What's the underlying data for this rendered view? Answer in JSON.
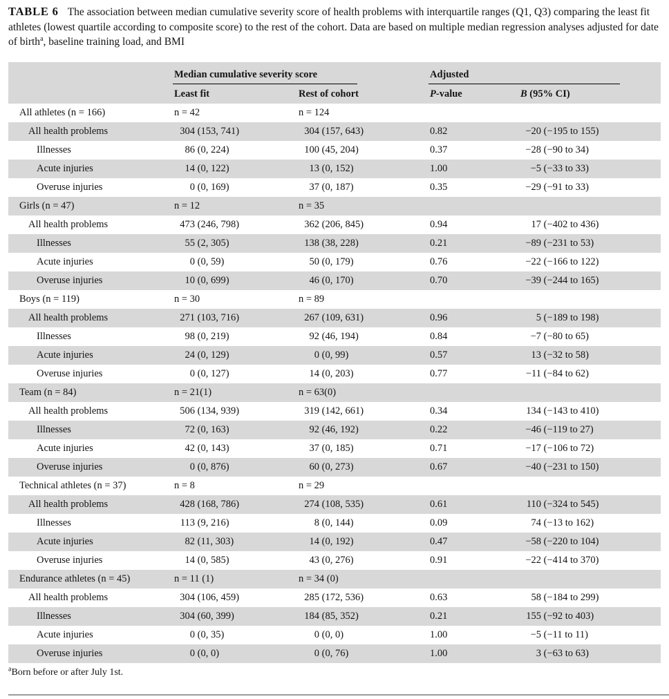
{
  "caption": {
    "label": "TABLE 6",
    "text": "The association between median cumulative severity score of health problems with interquartile ranges (Q1, Q3) comparing the least fit athletes (lowest quartile according to composite score) to the rest of the cohort. Data are based on multiple median regression analyses adjusted for date of birth",
    "footnote_marker": "a",
    "text_after": ", baseline training load, and BMI"
  },
  "table": {
    "header": {
      "group_severity": "Median cumulative severity score",
      "group_adjusted": "Adjusted",
      "least_fit": "Least fit",
      "rest_of_cohort": "Rest of cohort",
      "p_italic": "P",
      "p_rest": "-value",
      "b_italic": "B",
      "b_rest": " (95% CI)"
    },
    "sections": [
      {
        "label": "All athletes (n = 166)",
        "n_least": "n = 42",
        "n_rest": "n = 124",
        "rows": [
          {
            "level": 1,
            "label": "All health problems",
            "least": "304 (153, 741)",
            "rest": "304 (157, 643)",
            "p": "0.82",
            "b": "−20 (−195 to 155)"
          },
          {
            "level": 2,
            "label": "Illnesses",
            "least": "86 (0, 224)",
            "rest": "100 (45, 204)",
            "p": "0.37",
            "b": "−28 (−90 to 34)"
          },
          {
            "level": 2,
            "label": "Acute injuries",
            "least": "14 (0, 122)",
            "rest": "13 (0, 152)",
            "p": "1.00",
            "b": "−5 (−33 to 33)"
          },
          {
            "level": 2,
            "label": "Overuse injuries",
            "least": "0 (0, 169)",
            "rest": "37 (0, 187)",
            "p": "0.35",
            "b": "−29 (−91 to 33)"
          }
        ]
      },
      {
        "label": "Girls (n = 47)",
        "n_least": "n = 12",
        "n_rest": "n = 35",
        "rows": [
          {
            "level": 1,
            "label": "All health problems",
            "least": "473 (246, 798)",
            "rest": "362 (206, 845)",
            "p": "0.94",
            "b": "17 (−402 to 436)"
          },
          {
            "level": 2,
            "label": "Illnesses",
            "least": "55 (2, 305)",
            "rest": "138 (38, 228)",
            "p": "0.21",
            "b": "−89 (−231 to 53)"
          },
          {
            "level": 2,
            "label": "Acute injuries",
            "least": "0 (0, 59)",
            "rest": "50 (0, 179)",
            "p": "0.76",
            "b": "−22 (−166 to 122)"
          },
          {
            "level": 2,
            "label": "Overuse injuries",
            "least": "10 (0, 699)",
            "rest": "46 (0, 170)",
            "p": "0.70",
            "b": "−39 (−244 to 165)"
          }
        ]
      },
      {
        "label": "Boys (n = 119)",
        "n_least": "n = 30",
        "n_rest": "n = 89",
        "rows": [
          {
            "level": 1,
            "label": "All health problems",
            "least": "271 (103, 716)",
            "rest": "267 (109, 631)",
            "p": "0.96",
            "b": "5 (−189 to 198)"
          },
          {
            "level": 2,
            "label": "Illnesses",
            "least": "98 (0, 219)",
            "rest": "92 (46, 194)",
            "p": "0.84",
            "b": "−7 (−80 to 65)"
          },
          {
            "level": 2,
            "label": "Acute injuries",
            "least": "24 (0, 129)",
            "rest": "0 (0, 99)",
            "p": "0.57",
            "b": "13 (−32 to 58)"
          },
          {
            "level": 2,
            "label": "Overuse injuries",
            "least": "0 (0, 127)",
            "rest": "14 (0, 203)",
            "p": "0.77",
            "b": "−11 (−84 to 62)"
          }
        ]
      },
      {
        "label": "Team (n = 84)",
        "n_least": "n = 21(1)",
        "n_rest": "n = 63(0)",
        "rows": [
          {
            "level": 1,
            "label": "All health problems",
            "least": "506 (134, 939)",
            "rest": "319 (142, 661)",
            "p": "0.34",
            "b": "134 (−143 to 410)"
          },
          {
            "level": 2,
            "label": "Illnesses",
            "least": "72 (0, 163)",
            "rest": "92 (46, 192)",
            "p": "0.22",
            "b": "−46 (−119 to 27)"
          },
          {
            "level": 2,
            "label": "Acute injuries",
            "least": "42 (0, 143)",
            "rest": "37 (0, 185)",
            "p": "0.71",
            "b": "−17 (−106 to 72)"
          },
          {
            "level": 2,
            "label": "Overuse injuries",
            "least": "0 (0, 876)",
            "rest": "60 (0, 273)",
            "p": "0.67",
            "b": "−40 (−231 to 150)"
          }
        ]
      },
      {
        "label": "Technical athletes (n = 37)",
        "n_least": "n = 8",
        "n_rest": "n = 29",
        "rows": [
          {
            "level": 1,
            "label": "All health problems",
            "least": "428 (168, 786)",
            "rest": "274 (108, 535)",
            "p": "0.61",
            "b": "110 (−324 to 545)"
          },
          {
            "level": 2,
            "label": "Illnesses",
            "least": "113 (9, 216)",
            "rest": "8 (0, 144)",
            "p": "0.09",
            "b": "74 (−13 to 162)"
          },
          {
            "level": 2,
            "label": "Acute injuries",
            "least": "82 (11, 303)",
            "rest": "14 (0, 192)",
            "p": "0.47",
            "b": "−58 (−220 to 104)"
          },
          {
            "level": 2,
            "label": "Overuse injuries",
            "least": "14 (0, 585)",
            "rest": "43 (0, 276)",
            "p": "0.91",
            "b": "−22 (−414 to 370)"
          }
        ]
      },
      {
        "label": "Endurance athletes (n = 45)",
        "n_least": "n = 11 (1)",
        "n_rest": "n = 34 (0)",
        "rows": [
          {
            "level": 1,
            "label": "All health problems",
            "least": "304 (106, 459)",
            "rest": "285 (172, 536)",
            "p": "0.63",
            "b": "58 (−184 to 299)"
          },
          {
            "level": 2,
            "label": "Illnesses",
            "least": "304 (60, 399)",
            "rest": "184 (85, 352)",
            "p": "0.21",
            "b": "155 (−92 to 403)"
          },
          {
            "level": 2,
            "label": "Acute injuries",
            "least": "0 (0, 35)",
            "rest": "0 (0, 0)",
            "p": "1.00",
            "b": "−5 (−11 to 11)"
          },
          {
            "level": 2,
            "label": "Overuse injuries",
            "least": "0 (0, 0)",
            "rest": "0 (0, 76)",
            "p": "1.00",
            "b": "3 (−63 to 63)"
          }
        ]
      }
    ]
  },
  "footnote": {
    "marker": "a",
    "text": "Born before or after July 1st."
  },
  "colors": {
    "stripe": "#d8d8d8",
    "header_rule": "#000000",
    "page_rule": "#9a9a9a"
  }
}
